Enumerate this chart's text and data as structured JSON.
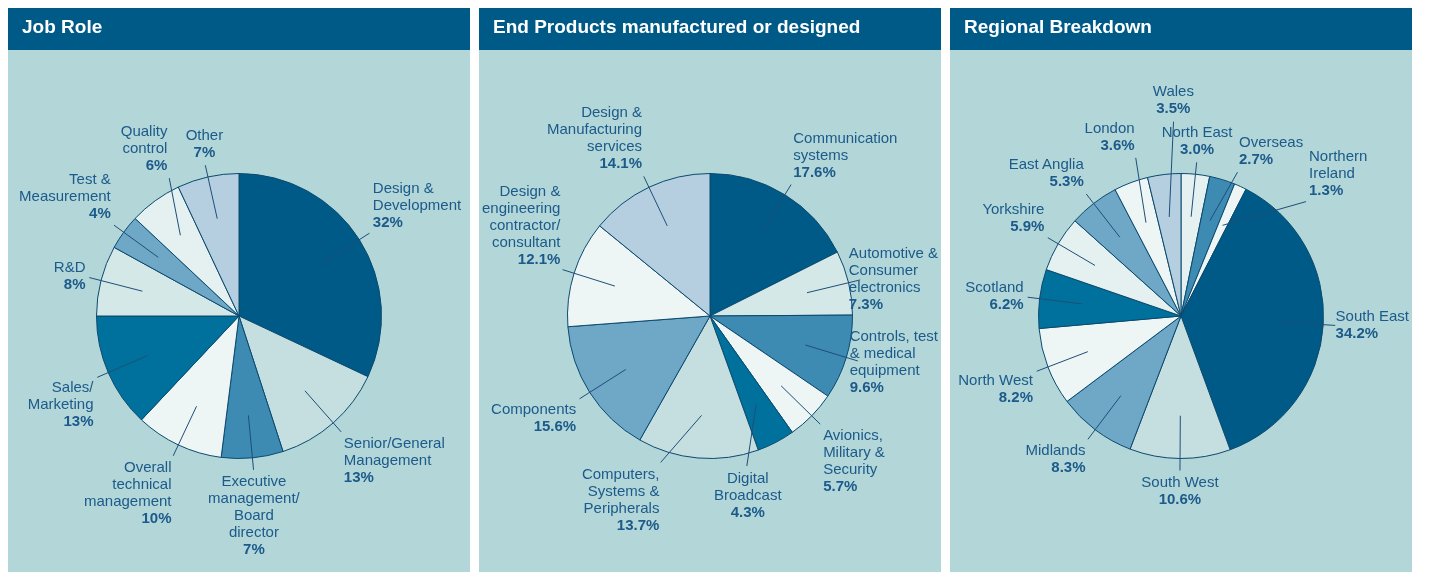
{
  "chart_data": [
    {
      "type": "pie",
      "title": "Job Role",
      "categories": [
        "Design & Development",
        "Senior/General Management",
        "Executive management/ Board director",
        "Overall technical management",
        "Sales/ Marketing",
        "R&D",
        "Test & Measurement",
        "Quality control",
        "Other"
      ],
      "values": [
        32,
        13,
        7,
        10,
        13,
        8,
        4,
        6,
        7
      ],
      "value_labels": [
        "32%",
        "13%",
        "7%",
        "10%",
        "13%",
        "8%",
        "4%",
        "6%",
        "7%"
      ],
      "colors": [
        "#005a87",
        "#c5dfe0",
        "#3d8ab3",
        "#eef5f5",
        "#00719c",
        "#d5e8e8",
        "#6fa7c7",
        "#e5f0f0",
        "#b5cfe0"
      ]
    },
    {
      "type": "pie",
      "title": "End Products manufactured or designed",
      "categories": [
        "Communication systems",
        "Automotive & Consumer electronics",
        "Controls, test & medical equipment",
        "Avionics, Military & Security",
        "Digital Broadcast",
        "Computers, Systems & Peripherals",
        "Components",
        "Design & engineering contractor/ consultant",
        "Design & Manufacturing services"
      ],
      "values": [
        17.6,
        7.3,
        9.6,
        5.7,
        4.3,
        13.7,
        15.6,
        12.1,
        14.1
      ],
      "value_labels": [
        "17.6%",
        "7.3%",
        "9.6%",
        "5.7%",
        "4.3%",
        "13.7%",
        "15.6%",
        "12.1%",
        "14.1%"
      ],
      "colors": [
        "#005a87",
        "#d5e8e8",
        "#3d8ab3",
        "#eef5f5",
        "#00719c",
        "#c5dfe0",
        "#6fa7c7",
        "#eef5f5",
        "#b5cfe0"
      ]
    },
    {
      "type": "pie",
      "title": "Regional Breakdown",
      "categories": [
        "North East",
        "Overseas",
        "Northern Ireland",
        "South East",
        "South West",
        "Midlands",
        "North West",
        "Scotland",
        "Yorkshire",
        "East Anglia",
        "London",
        "Wales"
      ],
      "values": [
        3.0,
        2.7,
        1.3,
        34.2,
        10.6,
        8.3,
        8.2,
        6.2,
        5.9,
        5.3,
        3.6,
        3.5
      ],
      "value_labels": [
        "3.0%",
        "2.7%",
        "1.3%",
        "34.2%",
        "10.6%",
        "8.3%",
        "8.2%",
        "6.2%",
        "5.9%",
        "5.3%",
        "3.6%",
        "3.5%"
      ],
      "colors": [
        "#e5f0f0",
        "#3d8ab3",
        "#eef5f5",
        "#005a87",
        "#c5dfe0",
        "#6fa7c7",
        "#eef5f5",
        "#00719c",
        "#e5f0f0",
        "#6fa7c7",
        "#eef5f5",
        "#b5cfe0"
      ]
    }
  ]
}
